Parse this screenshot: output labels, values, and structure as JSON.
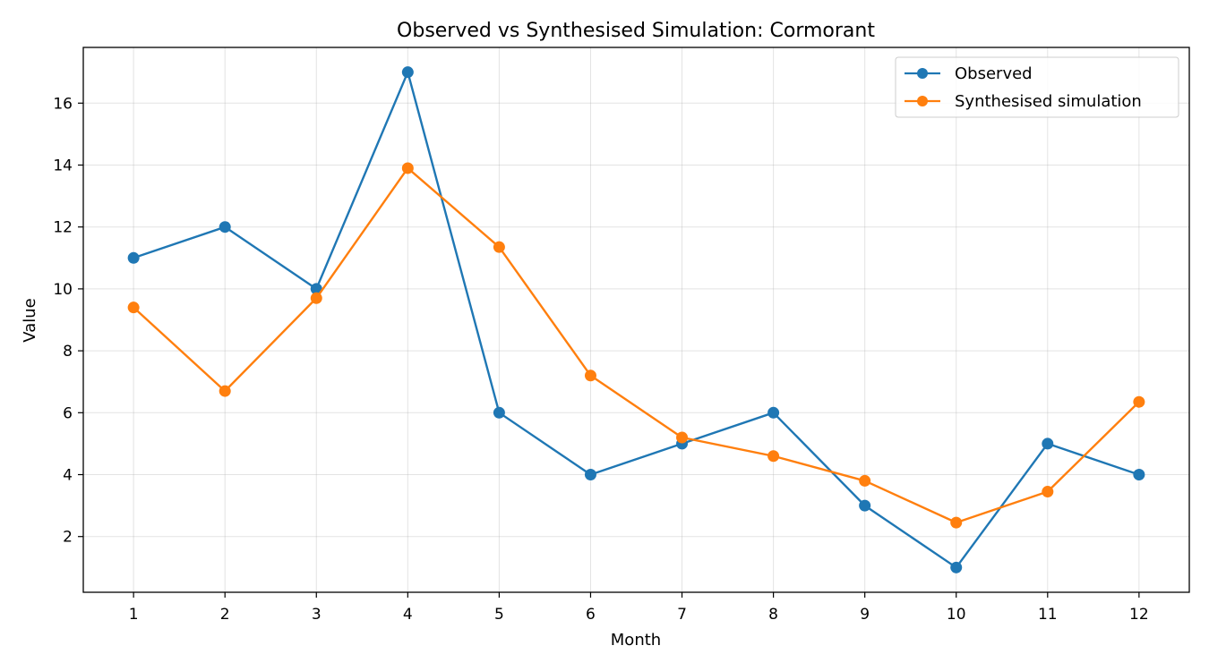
{
  "chart_data": {
    "type": "line",
    "title": "Observed vs Synthesised Simulation: Cormorant",
    "xlabel": "Month",
    "ylabel": "Value",
    "x": [
      1,
      2,
      3,
      4,
      5,
      6,
      7,
      8,
      9,
      10,
      11,
      12
    ],
    "xlim": [
      0.45,
      12.55
    ],
    "ylim": [
      0.2,
      17.8
    ],
    "yticks": [
      2,
      4,
      6,
      8,
      10,
      12,
      14,
      16
    ],
    "grid": true,
    "legend_position": "top-right",
    "series": [
      {
        "name": "Observed",
        "color": "#1f77b4",
        "marker": "circle",
        "values": [
          11,
          12,
          10,
          17,
          6,
          4,
          5,
          6,
          3,
          1,
          5,
          4
        ]
      },
      {
        "name": "Synthesised simulation",
        "color": "#ff7f0e",
        "marker": "circle",
        "values": [
          9.4,
          6.7,
          9.7,
          13.9,
          11.35,
          7.2,
          5.2,
          4.6,
          3.8,
          2.45,
          3.45,
          6.35
        ]
      }
    ]
  }
}
